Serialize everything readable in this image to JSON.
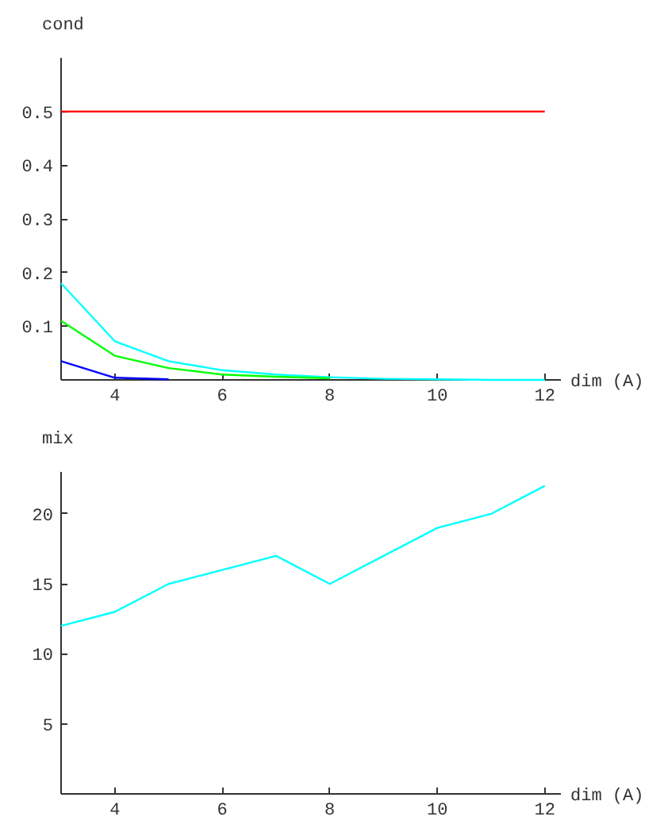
{
  "chart_data": [
    {
      "type": "line",
      "xlabel": "dim (A)",
      "ylabel": "cond",
      "x": [
        3,
        4,
        5,
        6,
        7,
        8,
        9,
        10,
        11,
        12
      ],
      "series": [
        {
          "color": "#ff0000",
          "values": [
            0.5,
            0.5,
            0.5,
            0.5,
            0.5,
            0.5,
            0.5,
            0.5,
            0.5,
            0.5
          ]
        },
        {
          "color": "#00ffff",
          "values": [
            0.18,
            0.072,
            0.035,
            0.018,
            0.01,
            0.005,
            0.002,
            0.001,
            0,
            0
          ]
        },
        {
          "color": "#00ff00",
          "values": [
            0.11,
            0.045,
            0.022,
            0.01,
            0.006,
            0.003,
            null,
            null,
            null,
            null
          ]
        },
        {
          "color": "#0000ff",
          "values": [
            0.035,
            0.004,
            0.001,
            null,
            null,
            null,
            null,
            null,
            null,
            null
          ]
        }
      ],
      "xlim": [
        3,
        12.3
      ],
      "ylim": [
        0,
        0.6
      ],
      "xticks": [
        4,
        6,
        8,
        10,
        12
      ],
      "yticks": [
        0.1,
        0.2,
        0.3,
        0.4,
        0.5
      ],
      "grid": false
    },
    {
      "type": "line",
      "xlabel": "dim (A)",
      "ylabel": "mix",
      "x": [
        3,
        4,
        5,
        6,
        7,
        8,
        9,
        10,
        11,
        12
      ],
      "series": [
        {
          "color": "#00ffff",
          "values": [
            12,
            13,
            15,
            16,
            17,
            15,
            17,
            19,
            20,
            22
          ]
        }
      ],
      "xlim": [
        3,
        12.3
      ],
      "ylim": [
        0,
        23
      ],
      "xticks": [
        4,
        6,
        8,
        10,
        12
      ],
      "yticks": [
        5,
        10,
        15,
        20
      ],
      "grid": false
    }
  ]
}
